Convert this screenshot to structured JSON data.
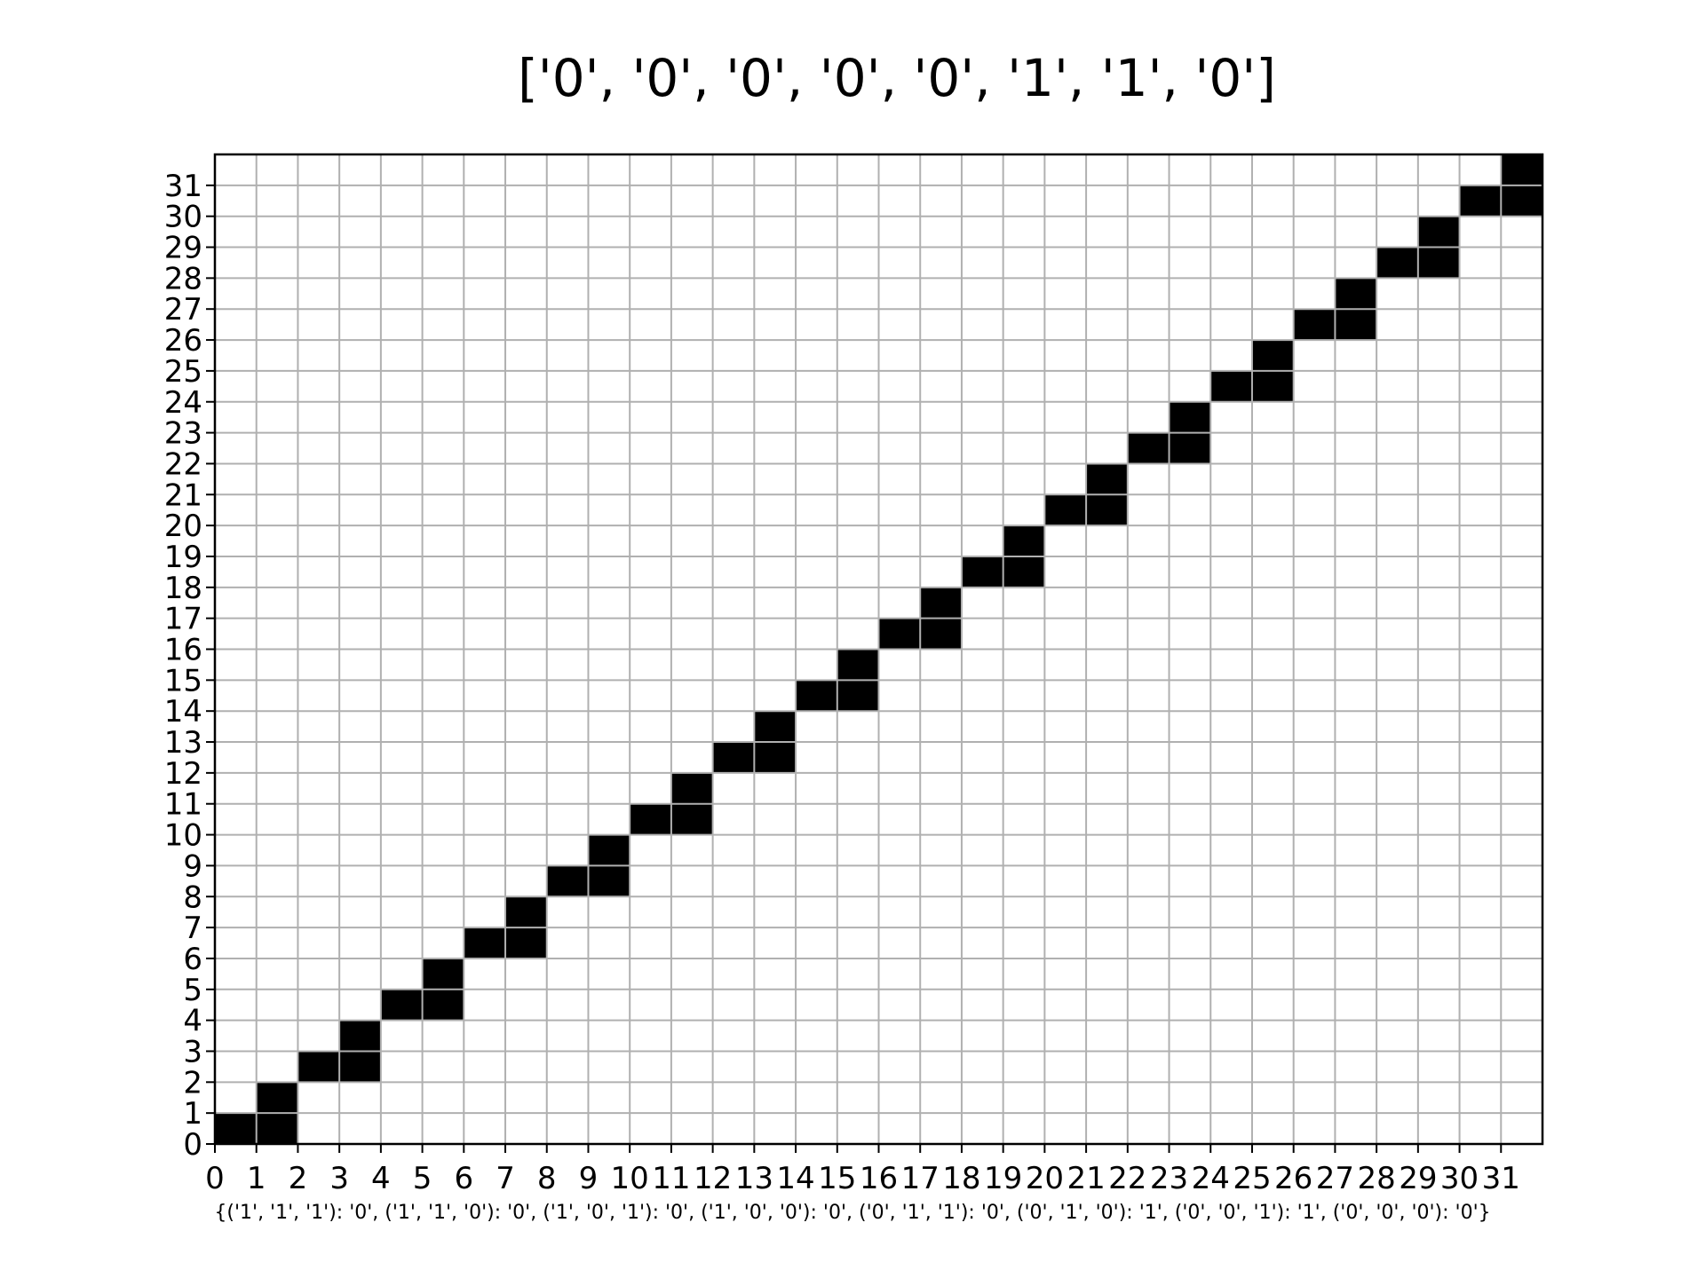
{
  "chart_data": {
    "type": "heatmap",
    "title": "['0', '0', '0', '0', '0', '1', '1', '0']",
    "xlabel": "{('1', '1', '1'): '0', ('1', '1', '0'): '0', ('1', '0', '1'): '0', ('1', '0', '0'): '0', ('0', '1', '1'): '0', ('0', '1', '0'): '1', ('0', '0', '1'): '1', ('0', '0', '0'): '0'}",
    "ylabel": "",
    "x_ticks": [
      0,
      1,
      2,
      3,
      4,
      5,
      6,
      7,
      8,
      9,
      10,
      11,
      12,
      13,
      14,
      15,
      16,
      17,
      18,
      19,
      20,
      21,
      22,
      23,
      24,
      25,
      26,
      27,
      28,
      29,
      30,
      31
    ],
    "y_ticks": [
      0,
      1,
      2,
      3,
      4,
      5,
      6,
      7,
      8,
      9,
      10,
      11,
      12,
      13,
      14,
      15,
      16,
      17,
      18,
      19,
      20,
      21,
      22,
      23,
      24,
      25,
      26,
      27,
      28,
      29,
      30,
      31
    ],
    "xlim": [
      0,
      32
    ],
    "ylim": [
      0,
      32
    ],
    "grid": true,
    "colors": {
      "filled": "#000000",
      "empty": "#ffffff",
      "grid": "#b0b0b0"
    },
    "filled_cells": [
      [
        0,
        0
      ],
      [
        1,
        0
      ],
      [
        1,
        1
      ],
      [
        2,
        2
      ],
      [
        3,
        2
      ],
      [
        3,
        3
      ],
      [
        4,
        4
      ],
      [
        5,
        4
      ],
      [
        5,
        5
      ],
      [
        6,
        6
      ],
      [
        7,
        6
      ],
      [
        7,
        7
      ],
      [
        8,
        8
      ],
      [
        9,
        8
      ],
      [
        9,
        9
      ],
      [
        10,
        10
      ],
      [
        11,
        10
      ],
      [
        11,
        11
      ],
      [
        12,
        12
      ],
      [
        13,
        12
      ],
      [
        13,
        13
      ],
      [
        14,
        14
      ],
      [
        15,
        14
      ],
      [
        15,
        15
      ],
      [
        16,
        16
      ],
      [
        17,
        16
      ],
      [
        17,
        17
      ],
      [
        18,
        18
      ],
      [
        19,
        18
      ],
      [
        19,
        19
      ],
      [
        20,
        20
      ],
      [
        21,
        20
      ],
      [
        21,
        21
      ],
      [
        22,
        22
      ],
      [
        23,
        22
      ],
      [
        23,
        23
      ],
      [
        24,
        24
      ],
      [
        25,
        24
      ],
      [
        25,
        25
      ],
      [
        26,
        26
      ],
      [
        27,
        26
      ],
      [
        27,
        27
      ],
      [
        28,
        28
      ],
      [
        29,
        28
      ],
      [
        29,
        29
      ],
      [
        30,
        30
      ],
      [
        31,
        30
      ],
      [
        31,
        31
      ]
    ]
  }
}
